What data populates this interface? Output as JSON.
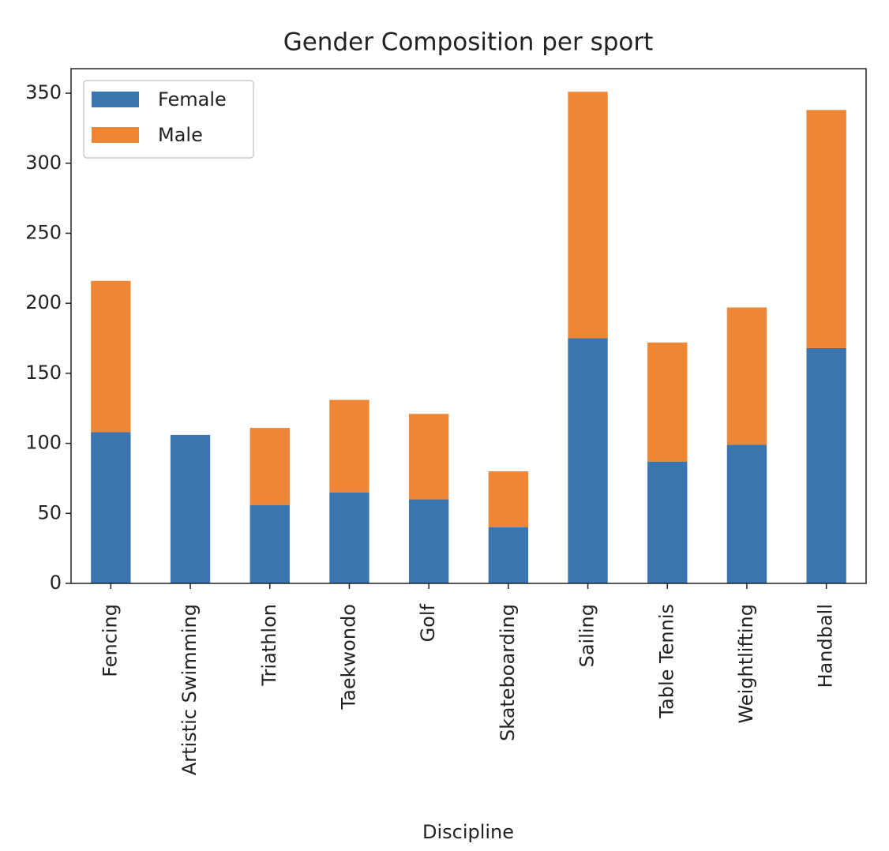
{
  "chart_data": {
    "type": "stacked_bar",
    "title": "Gender Composition per sport",
    "x_label": "Discipline",
    "categories": [
      "Fencing",
      "Artistic Swimming",
      "Triathlon",
      "Taekwondo",
      "Golf",
      "Skateboarding",
      "Sailing",
      "Table Tennis",
      "Weightlifting",
      "Handball"
    ],
    "series": [
      {
        "name": "Female",
        "color": "#3b75af",
        "values": [
          108,
          106,
          56,
          65,
          60,
          40,
          175,
          87,
          99,
          168
        ]
      },
      {
        "name": "Male",
        "color": "#ee8636",
        "values": [
          108,
          0,
          55,
          66,
          61,
          40,
          176,
          85,
          98,
          170
        ]
      }
    ],
    "ylim": [
      0,
      367.5
    ],
    "yticks": [
      0,
      50,
      100,
      150,
      200,
      250,
      300,
      350
    ],
    "grid": false,
    "legend": "upper left"
  }
}
